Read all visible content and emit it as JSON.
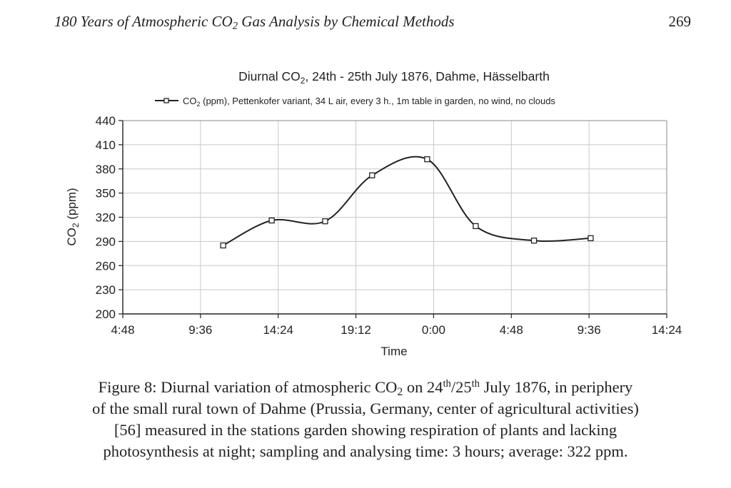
{
  "header": {
    "running_title_a": "180 Years of Atmospheric CO",
    "running_title_sub": "2",
    "running_title_b": " Gas Analysis by Chemical Methods",
    "page_number": "269"
  },
  "chart_data": {
    "type": "line",
    "title": "Diurnal CO2, 24th - 25th July 1876, Dahme, Hässelbarth",
    "title_parts": [
      "Diurnal CO",
      "2",
      ", 24th - 25th July 1876, Dahme, Hässelbarth"
    ],
    "legend": {
      "placement": "top",
      "label": "CO2 (ppm), Pettenkofer variant, 34 L air, every 3 h., 1m table in garden, no wind, no clouds",
      "label_parts": [
        "CO",
        "2",
        " (ppm), Pettenkofer variant, 34 L air, every 3 h., 1m table in garden, no wind, no clouds"
      ]
    },
    "xlabel": "Time",
    "ylabel": "CO2 (ppm)",
    "ylabel_parts": [
      "CO",
      "2",
      " (ppm)"
    ],
    "x_ticks": [
      "4:48",
      "9:36",
      "14:24",
      "19:12",
      "0:00",
      "4:48",
      "9:36",
      "14:24"
    ],
    "x_range_hours": [
      4.8,
      38.4
    ],
    "ylim": [
      200,
      440
    ],
    "y_ticks": [
      200,
      230,
      260,
      290,
      320,
      350,
      380,
      410,
      440
    ],
    "grid": true,
    "series": [
      {
        "name": "CO2 (ppm), Pettenkofer variant, 34 L air, every 3 h., 1m table in garden, no wind, no clouds",
        "marker": "square",
        "smooth": true,
        "x_hours": [
          11,
          14,
          17.3,
          20.2,
          23.6,
          26.6,
          30.2,
          33.7
        ],
        "x_times": [
          "11:00",
          "14:00",
          "17:18",
          "20:12",
          "23:36",
          "2:36",
          "6:12",
          "9:42"
        ],
        "values": [
          285,
          316,
          315,
          372,
          392,
          309,
          291,
          294
        ]
      }
    ]
  },
  "caption": {
    "line1_a": "Figure 8: Diurnal variation of atmospheric CO",
    "line1_sub": "2",
    "line1_b": " on 24",
    "line1_sup1": "th",
    "line1_c": "/25",
    "line1_sup2": "th",
    "line1_d": " July 1876, in periphery",
    "line2": "of the small rural town of Dahme (Prussia, Germany, center of agricultural activities)",
    "line3": "[56] measured in the stations garden showing respiration of plants and lacking",
    "line4": "photosynthesis at night; sampling and analysing time: 3 hours; average: 322 ppm."
  }
}
